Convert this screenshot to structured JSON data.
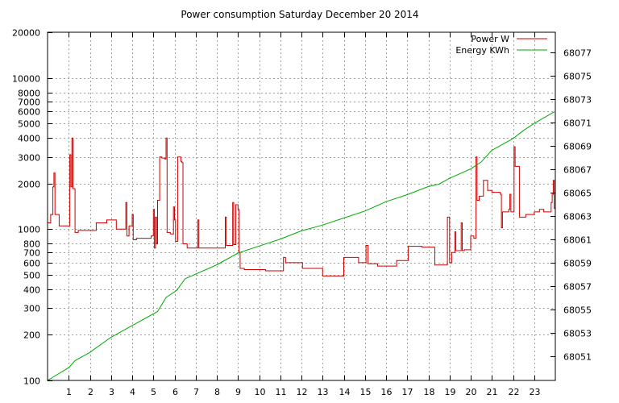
{
  "chart_data": {
    "type": "line",
    "title": "Power consumption Saturday December 20 2014",
    "xlabel": "",
    "ylabel": "",
    "xlim": [
      0,
      24
    ],
    "x_ticks": [
      1,
      2,
      3,
      4,
      5,
      6,
      7,
      8,
      9,
      10,
      11,
      12,
      13,
      14,
      15,
      16,
      17,
      18,
      19,
      20,
      21,
      22,
      23
    ],
    "y_left": {
      "scale": "log",
      "lim": [
        100,
        20000
      ],
      "ticks": [
        100,
        200,
        300,
        400,
        500,
        600,
        700,
        800,
        1000,
        2000,
        3000,
        4000,
        5000,
        6000,
        7000,
        8000,
        10000,
        20000
      ]
    },
    "y_right": {
      "scale": "linear",
      "lim": [
        68048.9,
        68078.7
      ],
      "ticks": [
        68051,
        68053,
        68055,
        68057,
        68059,
        68061,
        68063,
        68065,
        68067,
        68069,
        68071,
        68073,
        68075,
        68077
      ]
    },
    "grid": true,
    "legend_position": "top-right",
    "series": [
      {
        "name": "Power W",
        "axis": "left",
        "color": "#cc0000",
        "step": true,
        "points": [
          [
            0.0,
            1100
          ],
          [
            0.15,
            1250
          ],
          [
            0.25,
            1900
          ],
          [
            0.3,
            2350
          ],
          [
            0.35,
            1250
          ],
          [
            0.55,
            1050
          ],
          [
            1.05,
            3100
          ],
          [
            1.1,
            1900
          ],
          [
            1.15,
            4000
          ],
          [
            1.2,
            1850
          ],
          [
            1.3,
            950
          ],
          [
            1.45,
            980
          ],
          [
            2.3,
            1100
          ],
          [
            2.8,
            1150
          ],
          [
            3.25,
            1000
          ],
          [
            3.7,
            1500
          ],
          [
            3.75,
            900
          ],
          [
            3.85,
            1050
          ],
          [
            4.0,
            1250
          ],
          [
            4.05,
            850
          ],
          [
            4.2,
            870
          ],
          [
            4.9,
            900
          ],
          [
            5.0,
            1350
          ],
          [
            5.05,
            750
          ],
          [
            5.1,
            1200
          ],
          [
            5.15,
            800
          ],
          [
            5.2,
            1550
          ],
          [
            5.3,
            3000
          ],
          [
            5.4,
            2950
          ],
          [
            5.55,
            2900
          ],
          [
            5.6,
            4000
          ],
          [
            5.65,
            950
          ],
          [
            5.8,
            930
          ],
          [
            5.95,
            1400
          ],
          [
            6.0,
            1150
          ],
          [
            6.05,
            830
          ],
          [
            6.15,
            3000
          ],
          [
            6.3,
            2800
          ],
          [
            6.35,
            2750
          ],
          [
            6.4,
            800
          ],
          [
            6.6,
            750
          ],
          [
            7.1,
            1150
          ],
          [
            7.15,
            750
          ],
          [
            8.4,
            1200
          ],
          [
            8.45,
            780
          ],
          [
            8.75,
            1500
          ],
          [
            8.8,
            790
          ],
          [
            8.9,
            1450
          ],
          [
            9.0,
            1350
          ],
          [
            9.05,
            700
          ],
          [
            9.1,
            550
          ],
          [
            9.3,
            540
          ],
          [
            10.3,
            530
          ],
          [
            11.15,
            650
          ],
          [
            11.25,
            600
          ],
          [
            12.05,
            550
          ],
          [
            13.0,
            490
          ],
          [
            14.0,
            650
          ],
          [
            14.7,
            600
          ],
          [
            15.05,
            780
          ],
          [
            15.15,
            590
          ],
          [
            15.6,
            570
          ],
          [
            16.5,
            620
          ],
          [
            17.05,
            770
          ],
          [
            17.7,
            760
          ],
          [
            18.3,
            580
          ],
          [
            18.9,
            1200
          ],
          [
            19.0,
            600
          ],
          [
            19.1,
            700
          ],
          [
            19.25,
            960
          ],
          [
            19.3,
            720
          ],
          [
            19.55,
            1100
          ],
          [
            19.6,
            720
          ],
          [
            19.7,
            730
          ],
          [
            20.0,
            900
          ],
          [
            20.15,
            870
          ],
          [
            20.25,
            3000
          ],
          [
            20.3,
            1550
          ],
          [
            20.4,
            1650
          ],
          [
            20.6,
            2100
          ],
          [
            20.8,
            1800
          ],
          [
            21.0,
            1750
          ],
          [
            21.4,
            1700
          ],
          [
            21.45,
            1020
          ],
          [
            21.5,
            1300
          ],
          [
            21.8,
            1350
          ],
          [
            21.85,
            1700
          ],
          [
            21.9,
            1300
          ],
          [
            22.05,
            3500
          ],
          [
            22.1,
            2600
          ],
          [
            22.3,
            1200
          ],
          [
            22.6,
            1250
          ],
          [
            23.0,
            1300
          ],
          [
            23.25,
            1350
          ],
          [
            23.45,
            1300
          ],
          [
            23.8,
            1500
          ],
          [
            23.85,
            1700
          ],
          [
            23.9,
            2100
          ],
          [
            23.95,
            1370
          ]
        ]
      },
      {
        "name": "Energy KWh",
        "axis": "right",
        "color": "#00aa00",
        "step": false,
        "points": [
          [
            0.0,
            68048.9
          ],
          [
            1.0,
            68050.0
          ],
          [
            1.3,
            68050.6
          ],
          [
            2.0,
            68051.3
          ],
          [
            3.0,
            68052.6
          ],
          [
            4.0,
            68053.6
          ],
          [
            5.2,
            68054.8
          ],
          [
            5.6,
            68056.0
          ],
          [
            6.1,
            68056.6
          ],
          [
            6.5,
            68057.6
          ],
          [
            7.0,
            68058.0
          ],
          [
            8.0,
            68058.8
          ],
          [
            9.0,
            68059.8
          ],
          [
            10.0,
            68060.4
          ],
          [
            11.0,
            68061.0
          ],
          [
            12.0,
            68061.7
          ],
          [
            13.0,
            68062.2
          ],
          [
            14.0,
            68062.8
          ],
          [
            15.0,
            68063.4
          ],
          [
            16.0,
            68064.2
          ],
          [
            17.0,
            68064.8
          ],
          [
            18.0,
            68065.5
          ],
          [
            18.5,
            68065.7
          ],
          [
            19.0,
            68066.2
          ],
          [
            20.0,
            68067.0
          ],
          [
            20.5,
            68067.6
          ],
          [
            21.0,
            68068.6
          ],
          [
            22.0,
            68069.6
          ],
          [
            22.5,
            68070.3
          ],
          [
            23.0,
            68070.9
          ],
          [
            23.96,
            68071.9
          ]
        ]
      }
    ]
  }
}
